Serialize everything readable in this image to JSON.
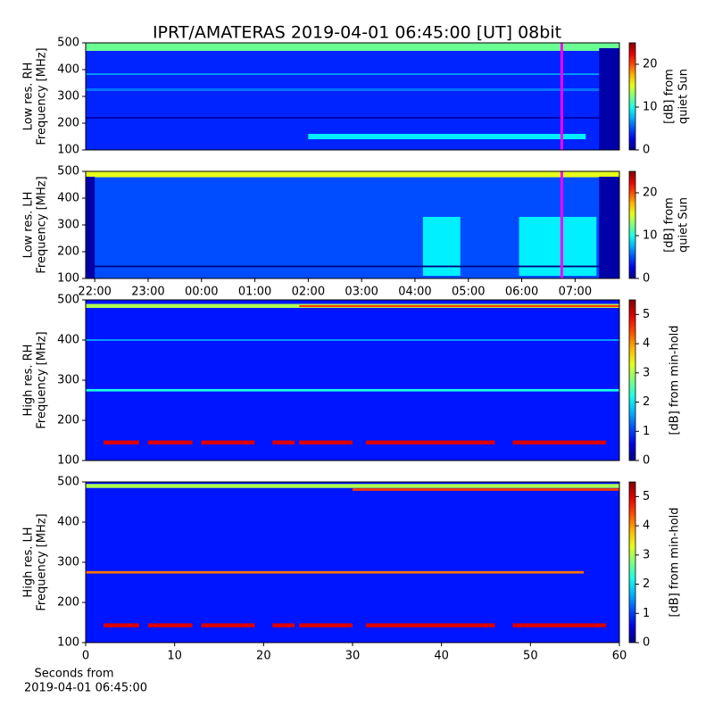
{
  "chart_data": [
    {
      "type": "heatmap",
      "title": "IPRT/AMATERAS 2019-04-01 06:45:00 [UT]   08bit",
      "ylabel": [
        "Low res. RH",
        "Frequency [MHz]"
      ],
      "xlim": [
        21.83,
        31.83
      ],
      "ylim": [
        100,
        500
      ],
      "yticks": [
        100,
        200,
        300,
        400,
        500
      ],
      "clim": [
        0,
        25
      ],
      "cticks": [
        0,
        10,
        20
      ],
      "clabel": [
        "[dB] from",
        "quiet Sun"
      ],
      "background": 4,
      "marker_x": 30.75,
      "marker_color": "#ff00ff",
      "features": [
        {
          "x": [
            21.83,
            31.83
          ],
          "y": [
            470,
            500
          ],
          "value": 12
        },
        {
          "x": [
            21.83,
            31.83
          ],
          "y": [
            217,
            223
          ],
          "value": 1
        },
        {
          "x": [
            21.83,
            31.83
          ],
          "y": [
            380,
            386
          ],
          "value": 7
        },
        {
          "x": [
            21.83,
            31.83
          ],
          "y": [
            320,
            330
          ],
          "value": 6
        },
        {
          "x": [
            26.0,
            31.2
          ],
          "y": [
            140,
            160
          ],
          "value": 9
        },
        {
          "x": [
            31.45,
            31.83
          ],
          "y": [
            100,
            480
          ],
          "value": 1
        }
      ]
    },
    {
      "type": "heatmap",
      "ylabel": [
        "Low res. LH",
        "Frequency [MHz]"
      ],
      "xlim": [
        21.83,
        31.83
      ],
      "ylim": [
        100,
        500
      ],
      "yticks": [
        100,
        200,
        300,
        400,
        500
      ],
      "xticks": [
        {
          "value": 22,
          "label": "22:00"
        },
        {
          "value": 23,
          "label": "23:00"
        },
        {
          "value": 24,
          "label": "00:00"
        },
        {
          "value": 25,
          "label": "01:00"
        },
        {
          "value": 26,
          "label": "02:00"
        },
        {
          "value": 27,
          "label": "03:00"
        },
        {
          "value": 28,
          "label": "04:00"
        },
        {
          "value": 29,
          "label": "05:00"
        },
        {
          "value": 30,
          "label": "06:00"
        },
        {
          "value": 31,
          "label": "07:00"
        }
      ],
      "clim": [
        0,
        25
      ],
      "cticks": [
        0,
        10,
        20
      ],
      "clabel": [
        "[dB] from",
        "quiet Sun"
      ],
      "background": 5,
      "marker_x": 30.75,
      "marker_color": "#ff00ff",
      "features": [
        {
          "x": [
            21.83,
            31.83
          ],
          "y": [
            478,
            500
          ],
          "value": 15
        },
        {
          "x": [
            28.15,
            28.85
          ],
          "y": [
            110,
            330
          ],
          "value": 9
        },
        {
          "x": [
            29.95,
            31.4
          ],
          "y": [
            110,
            330
          ],
          "value": 9
        },
        {
          "x": [
            21.83,
            31.83
          ],
          "y": [
            142,
            148
          ],
          "value": 0
        },
        {
          "x": [
            21.83,
            22.0
          ],
          "y": [
            100,
            480
          ],
          "value": 1
        },
        {
          "x": [
            31.45,
            31.83
          ],
          "y": [
            100,
            480
          ],
          "value": 1
        }
      ]
    },
    {
      "type": "heatmap",
      "ylabel": [
        "High res. RH",
        "Frequency [MHz]"
      ],
      "xlim": [
        0,
        60
      ],
      "ylim": [
        100,
        500
      ],
      "yticks": [
        100,
        200,
        300,
        400,
        500
      ],
      "clim": [
        0,
        5.5
      ],
      "cticks": [
        0,
        1,
        2,
        3,
        4,
        5
      ],
      "clabel": [
        "[dB] from min-hold"
      ],
      "background": 0.8,
      "features": [
        {
          "x": [
            0,
            60
          ],
          "y": [
            480,
            490
          ],
          "value": 3
        },
        {
          "x": [
            24,
            60
          ],
          "y": [
            482,
            487
          ],
          "value": 4.5
        },
        {
          "x": [
            0,
            60
          ],
          "y": [
            272,
            278
          ],
          "value": 2.2
        },
        {
          "x": [
            0,
            60
          ],
          "y": [
            398,
            402
          ],
          "value": 1.6
        },
        {
          "x": [
            2,
            6
          ],
          "y": [
            140,
            150
          ],
          "value": 5
        },
        {
          "x": [
            7,
            12
          ],
          "y": [
            140,
            150
          ],
          "value": 5
        },
        {
          "x": [
            13,
            19
          ],
          "y": [
            140,
            150
          ],
          "value": 5
        },
        {
          "x": [
            21,
            23.5
          ],
          "y": [
            140,
            150
          ],
          "value": 5
        },
        {
          "x": [
            24,
            30
          ],
          "y": [
            140,
            150
          ],
          "value": 5
        },
        {
          "x": [
            31.5,
            46
          ],
          "y": [
            140,
            150
          ],
          "value": 5
        },
        {
          "x": [
            48,
            58.5
          ],
          "y": [
            140,
            150
          ],
          "value": 5
        }
      ]
    },
    {
      "type": "heatmap",
      "ylabel": [
        "High res. LH",
        "Frequency [MHz]"
      ],
      "xlim": [
        0,
        60
      ],
      "ylim": [
        100,
        500
      ],
      "yticks": [
        100,
        200,
        300,
        400,
        500
      ],
      "xticks": [
        0,
        10,
        20,
        30,
        40,
        50,
        60
      ],
      "xlabel": [
        "Seconds from",
        "2019-04-01 06:45:00"
      ],
      "clim": [
        0,
        5.5
      ],
      "cticks": [
        0,
        1,
        2,
        3,
        4,
        5
      ],
      "clabel": [
        "[dB] from min-hold"
      ],
      "background": 0.8,
      "features": [
        {
          "x": [
            0,
            60
          ],
          "y": [
            485,
            495
          ],
          "value": 3
        },
        {
          "x": [
            30,
            60
          ],
          "y": [
            478,
            484
          ],
          "value": 4.5
        },
        {
          "x": [
            0,
            56
          ],
          "y": [
            272,
            278
          ],
          "value": 4.2
        },
        {
          "x": [
            2,
            6
          ],
          "y": [
            138,
            148
          ],
          "value": 5
        },
        {
          "x": [
            7,
            12
          ],
          "y": [
            138,
            148
          ],
          "value": 5
        },
        {
          "x": [
            13,
            19
          ],
          "y": [
            138,
            148
          ],
          "value": 5
        },
        {
          "x": [
            21,
            23.5
          ],
          "y": [
            138,
            148
          ],
          "value": 5
        },
        {
          "x": [
            24,
            30
          ],
          "y": [
            138,
            148
          ],
          "value": 5
        },
        {
          "x": [
            31.5,
            46
          ],
          "y": [
            138,
            148
          ],
          "value": 5
        },
        {
          "x": [
            48,
            58.5
          ],
          "y": [
            138,
            148
          ],
          "value": 5
        }
      ]
    }
  ]
}
